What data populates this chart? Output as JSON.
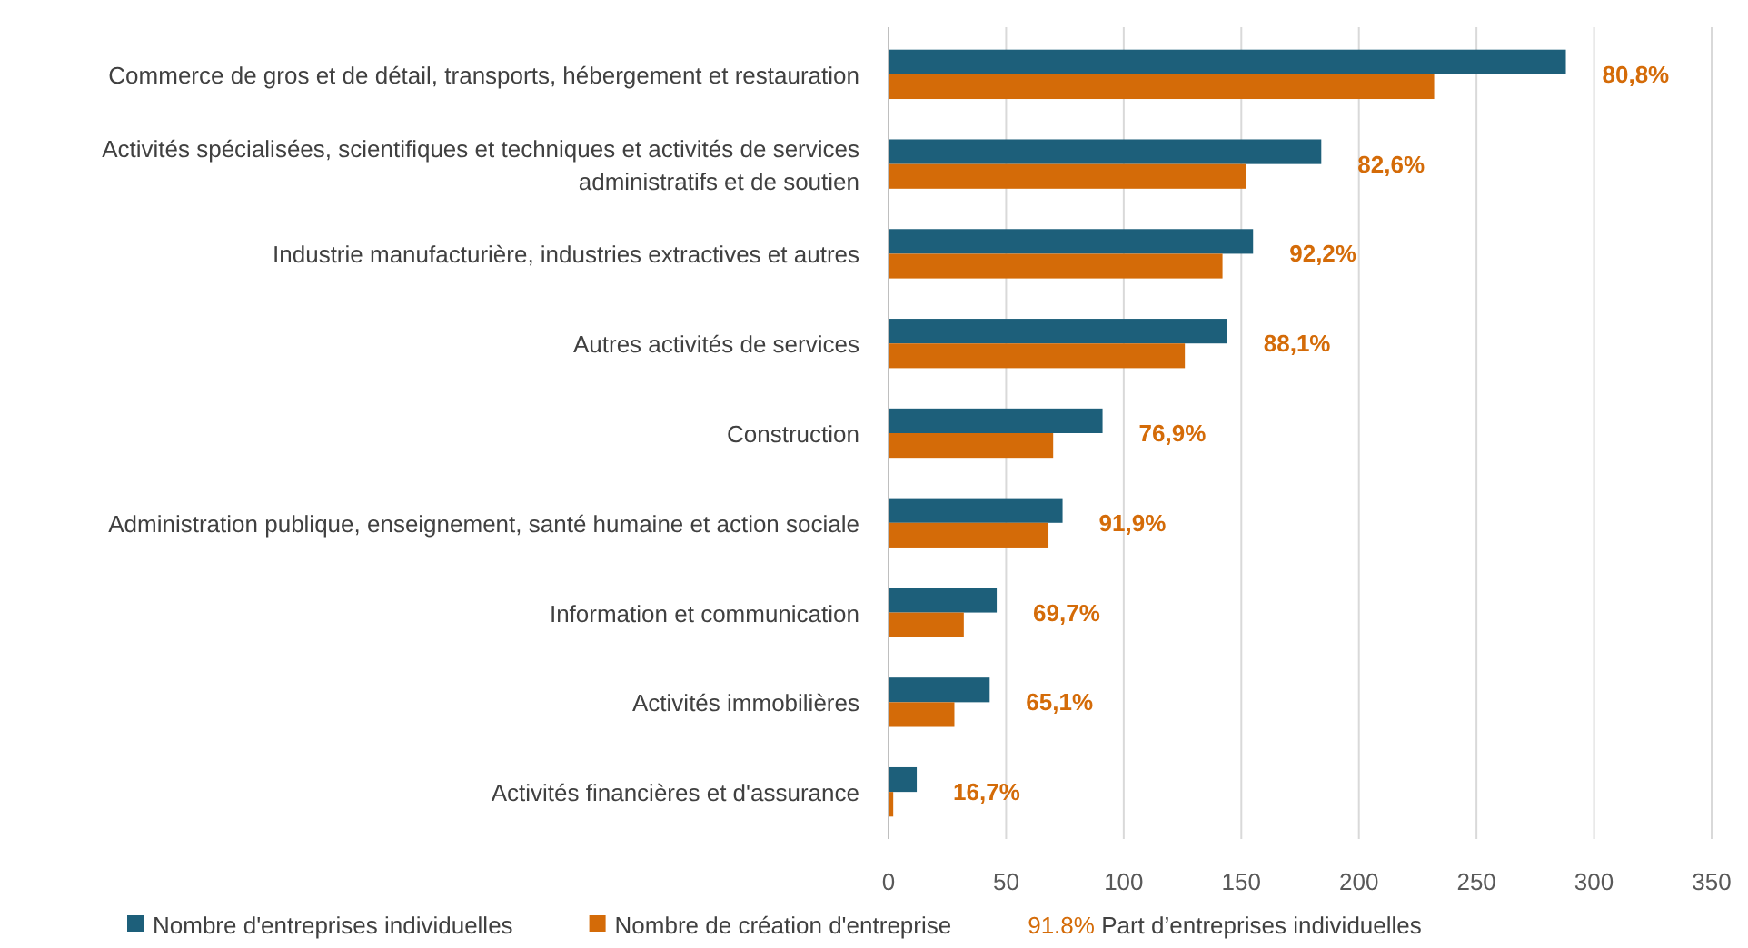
{
  "chart_data": {
    "type": "bar",
    "orientation": "horizontal",
    "categories": [
      "Commerce de gros et de détail, transports, hébergement et restauration",
      "Activités spécialisées, scientifiques et techniques et activités de services administratifs et de soutien",
      "Industrie manufacturière, industries extractives et autres",
      "Autres activités de services",
      "Construction",
      "Administration publique, enseignement, santé humaine et action sociale",
      "Information et communication",
      "Activités immobilières",
      "Activités financières et d'assurance"
    ],
    "series": [
      {
        "name": "Nombre d'entreprises individuelles",
        "color": "#1d5f7a",
        "values": [
          288,
          184,
          155,
          144,
          91,
          74,
          46,
          43,
          12
        ]
      },
      {
        "name": "Nombre de création d'entreprise",
        "color": "#d46b08",
        "values": [
          232,
          152,
          142,
          126,
          70,
          68,
          32,
          28,
          2
        ]
      }
    ],
    "xlim": [
      0,
      350
    ],
    "xticks": [
      0,
      50,
      100,
      150,
      200,
      250,
      300,
      350
    ],
    "grid": "x",
    "legend": "bottom",
    "annotations": [
      {
        "text": "80,8%",
        "x": 288,
        "y": "Commerce de gros et de détail, transports, hébergement et restauration"
      },
      {
        "text": "82,6%",
        "x": 184,
        "y": "Activités spécialisées, scientifiques et techniques et activités de services administratifs et de soutien"
      },
      {
        "text": "92,2%",
        "x": 155,
        "y": "Industrie manufacturière, industries extractives et autres"
      },
      {
        "text": "88,1%",
        "x": 144,
        "y": "Autres activités de services"
      },
      {
        "text": "76,9%",
        "x": 91,
        "y": "Construction"
      },
      {
        "text": "91,9%",
        "x": 74,
        "y": "Administration publique, enseignement, santé humaine et action sociale"
      },
      {
        "text": "69,7%",
        "x": 46,
        "y": "Information et communication"
      },
      {
        "text": "65,1%",
        "x": 43,
        "y": "Activités immobilières"
      },
      {
        "text": "16,7%",
        "x": 12,
        "y": "Activités financières et d'assurance"
      },
      "91.8% Part d’entreprises individuelles"
    ]
  }
}
